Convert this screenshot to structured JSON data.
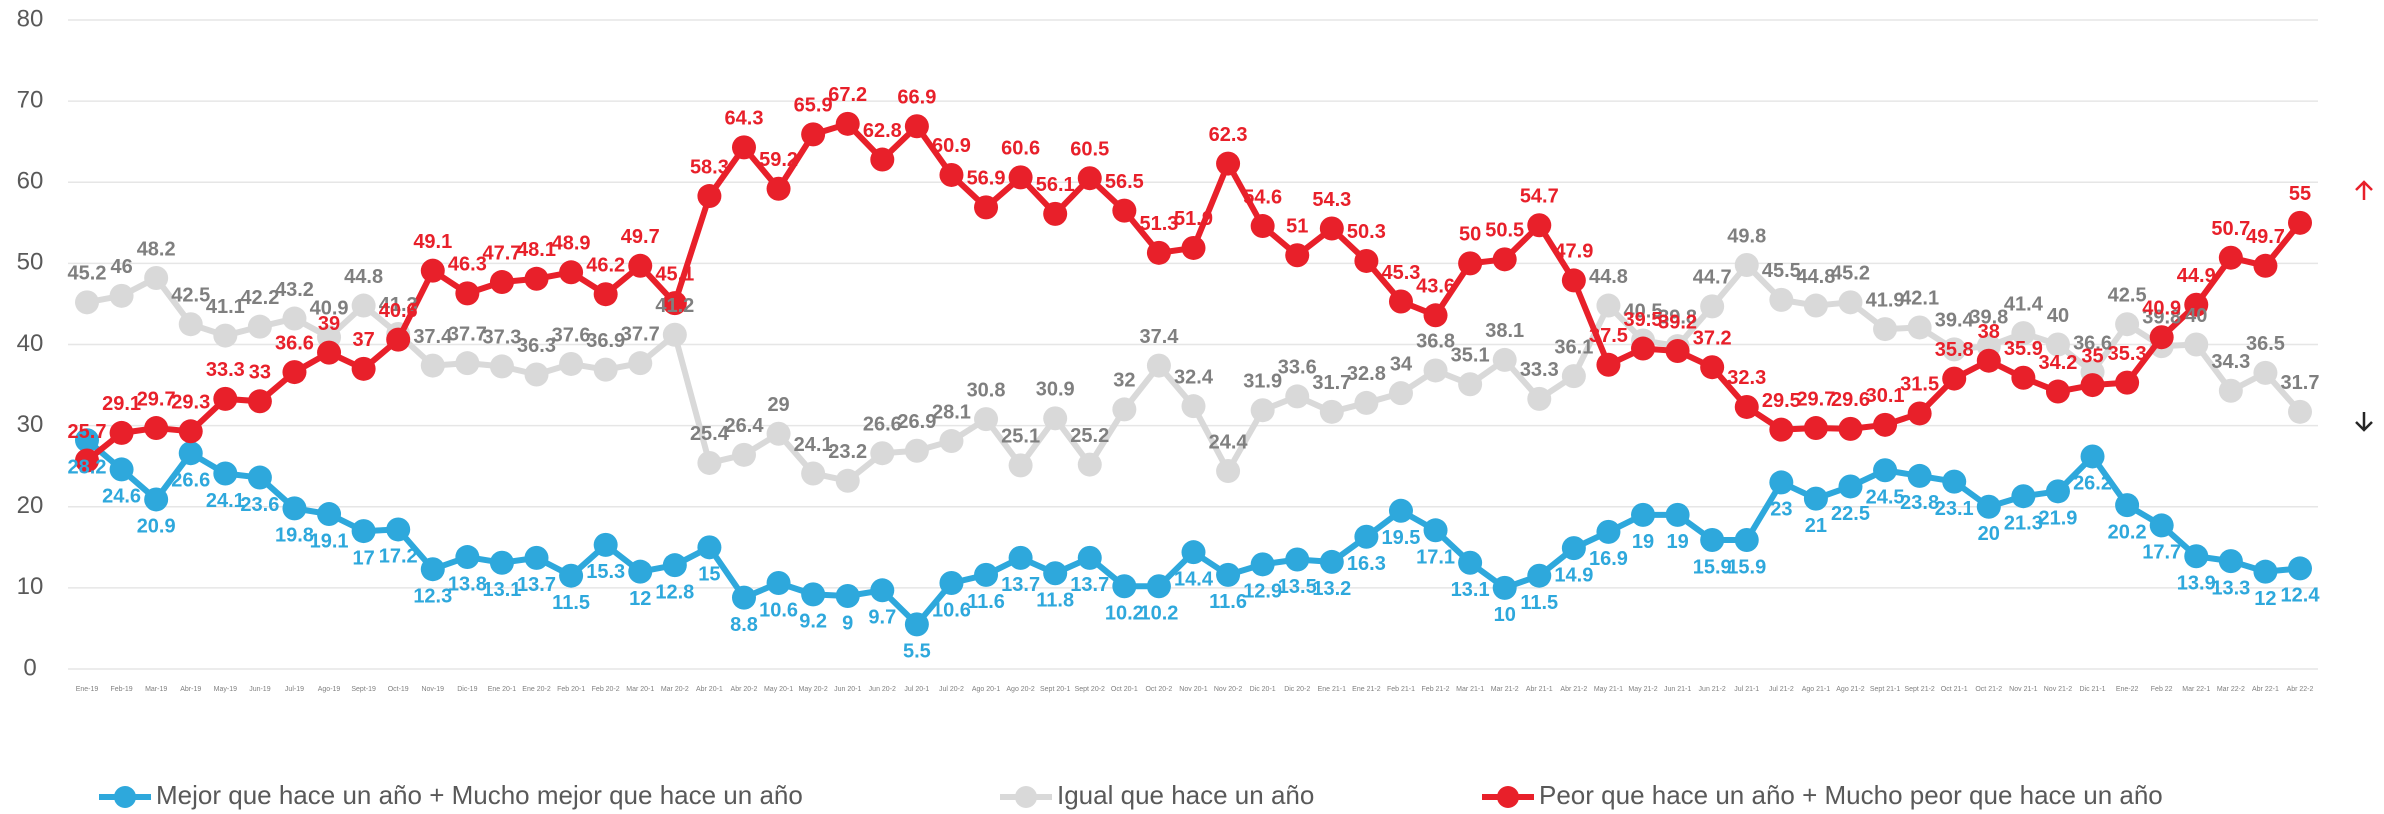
{
  "chart_data": {
    "type": "line",
    "categories": [
      "Ene-19",
      "Feb-19",
      "Mar-19",
      "Abr-19",
      "May-19",
      "Jun-19",
      "Jul-19",
      "Ago-19",
      "Sept-19",
      "Oct-19",
      "Nov-19",
      "Dic-19",
      "Ene 20-1",
      "Ene 20-2",
      "Feb 20-1",
      "Feb 20-2",
      "Mar 20-1",
      "Mar 20-2",
      "Abr 20-1",
      "Abr 20-2",
      "May 20-1",
      "May 20-2",
      "Jun 20-1",
      "Jun 20-2",
      "Jul 20-1",
      "Jul 20-2",
      "Ago 20-1",
      "Ago 20-2",
      "Sept 20-1",
      "Sept 20-2",
      "Oct 20-1",
      "Oct 20-2",
      "Nov 20-1",
      "Nov 20-2",
      "Dic 20-1",
      "Dic 20-2",
      "Ene 21-1",
      "Ene 21-2",
      "Feb 21-1",
      "Feb 21-2",
      "Mar 21-1",
      "Mar 21-2",
      "Abr 21-1",
      "Abr 21-2",
      "May 21-1",
      "May 21-2",
      "Jun 21-1",
      "Jun 21-2",
      "Jul 21-1",
      "Jul 21-2",
      "Ago 21-1",
      "Ago 21-2",
      "Sept 21-1",
      "Sept 21-2",
      "Oct 21-1",
      "Oct 21-2",
      "Nov 21-1",
      "Nov 21-2",
      "Dic 21-1",
      "Ene-22",
      "Feb 22",
      "Mar 22-1",
      "Mar 22-2",
      "Abr 22-1",
      "Abr 22-2"
    ],
    "series": [
      {
        "name": "Mejor que hace un año + Mucho mejor que hace un año",
        "color": "#2ea8dc",
        "label_color": "#2ea8dc",
        "label_position": "below",
        "values": [
          28.2,
          24.6,
          20.9,
          26.6,
          24.1,
          23.6,
          19.8,
          19.1,
          17,
          17.2,
          12.3,
          13.8,
          13.1,
          13.7,
          11.5,
          15.3,
          12,
          12.8,
          15,
          8.8,
          10.6,
          9.2,
          9,
          9.7,
          5.5,
          10.6,
          11.6,
          13.7,
          11.8,
          13.7,
          10.2,
          10.2,
          14.4,
          11.6,
          12.9,
          13.5,
          13.2,
          16.3,
          19.5,
          17.1,
          13.1,
          10,
          11.5,
          14.9,
          16.9,
          19,
          19,
          15.9,
          15.9,
          23,
          21,
          22.5,
          24.5,
          23.8,
          23.1,
          20,
          21.3,
          21.9,
          26.2,
          20.2,
          17.7,
          13.9,
          13.3,
          12,
          12.4
        ]
      },
      {
        "name": "Igual que hace un año",
        "color": "#d9d9d9",
        "label_color": "#7f7f7f",
        "label_position": "above",
        "values": [
          45.2,
          46,
          48.2,
          42.5,
          41.1,
          42.2,
          43.2,
          40.9,
          44.8,
          41.3,
          37.4,
          37.7,
          37.3,
          36.3,
          37.6,
          36.9,
          37.7,
          41.2,
          25.4,
          26.4,
          29,
          24.1,
          23.2,
          26.6,
          26.9,
          28.1,
          30.8,
          25.1,
          30.9,
          25.2,
          32,
          37.4,
          32.4,
          24.4,
          31.9,
          33.6,
          31.7,
          32.8,
          34,
          36.8,
          35.1,
          38.1,
          33.3,
          36.1,
          44.8,
          40.5,
          39.8,
          44.7,
          49.8,
          45.5,
          44.8,
          45.2,
          41.9,
          42.1,
          39.4,
          39.8,
          41.4,
          40,
          36.6,
          42.5,
          39.8,
          40,
          34.3,
          36.5,
          31.7
        ]
      },
      {
        "name": "Peor que hace un año + Mucho peor que hace un año",
        "color": "#e8202a",
        "label_color": "#e8202a",
        "label_position": "above",
        "values": [
          25.7,
          29.1,
          29.7,
          29.3,
          33.3,
          33,
          36.6,
          39,
          37,
          40.6,
          49.1,
          46.3,
          47.7,
          48.1,
          48.9,
          46.2,
          49.7,
          45.1,
          58.3,
          64.3,
          59.2,
          65.9,
          67.2,
          62.8,
          66.9,
          60.9,
          56.9,
          60.6,
          56.1,
          60.5,
          56.5,
          51.3,
          51.9,
          62.3,
          54.6,
          51,
          54.3,
          50.3,
          45.3,
          43.6,
          50,
          50.5,
          54.7,
          47.9,
          37.5,
          39.5,
          39.2,
          37.2,
          32.3,
          29.5,
          29.7,
          29.6,
          30.1,
          31.5,
          35.8,
          38,
          35.9,
          34.2,
          35,
          35.3,
          40.9,
          44.9,
          50.7,
          49.7,
          55
        ]
      }
    ],
    "ylim": [
      0,
      80
    ],
    "yticks": [
      0,
      10,
      20,
      30,
      40,
      50,
      60,
      70,
      80
    ],
    "grid": true,
    "legend": "bottom"
  }
}
